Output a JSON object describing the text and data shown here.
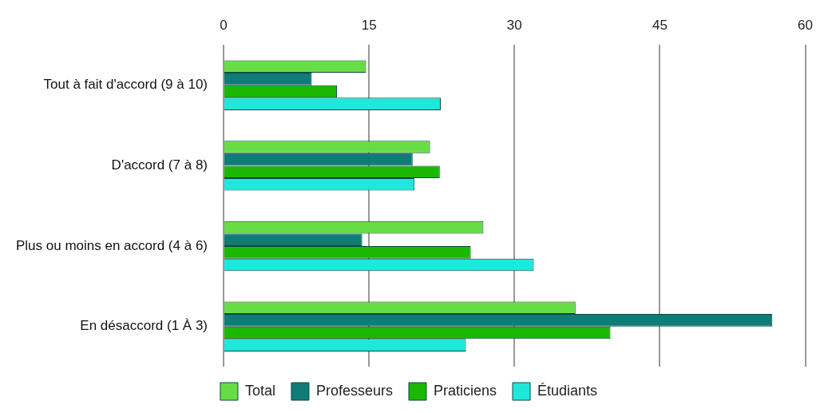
{
  "chart_data": {
    "type": "bar",
    "orientation": "horizontal",
    "categories": [
      "Tout à fait d'accord (9 à 10)",
      "D'accord (7 à 8)",
      "Plus ou moins en accord (4 à 6)",
      "En désaccord (1 À 3)"
    ],
    "series": [
      {
        "name": "Total",
        "color": "#66dd44",
        "values": [
          14.7,
          21.3,
          26.8,
          36.3
        ]
      },
      {
        "name": "Professeurs",
        "color": "#0f7c78",
        "values": [
          9.1,
          19.5,
          14.3,
          56.6
        ]
      },
      {
        "name": "Praticiens",
        "color": "#1ab800",
        "values": [
          11.7,
          22.3,
          25.5,
          39.9
        ]
      },
      {
        "name": "Étudiants",
        "color": "#1ee8dc",
        "values": [
          22.4,
          19.7,
          32.0,
          25.0
        ]
      }
    ],
    "xlim": [
      0,
      60
    ],
    "xticks": [
      0,
      15,
      30,
      45,
      60
    ],
    "grid": "x",
    "legend": "bottom"
  }
}
